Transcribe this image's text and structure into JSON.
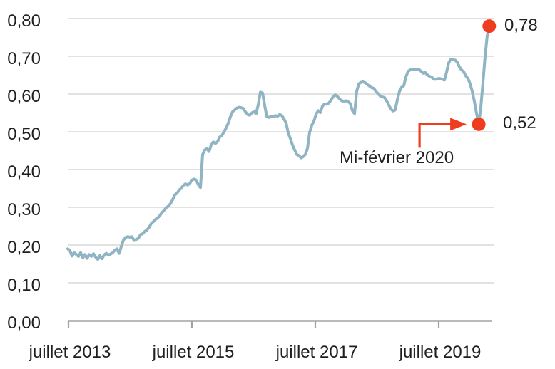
{
  "chart_data": {
    "type": "line",
    "title": "",
    "legend": "none",
    "grid": "horizontal-only",
    "x_axis": {
      "tick_labels": [
        "juillet 2013",
        "juillet 2015",
        "juillet 2017",
        "juillet 2019"
      ],
      "tick_positions_years": [
        0,
        2,
        4,
        6
      ],
      "start": "juillet 2013",
      "end_years_after_start": 6.83
    },
    "y_axis": {
      "tick_labels": [
        "0,00",
        "0,10",
        "0,20",
        "0,30",
        "0,40",
        "0,50",
        "0,60",
        "0,70",
        "0,80"
      ],
      "tick_values": [
        0,
        0.1,
        0.2,
        0.3,
        0.4,
        0.5,
        0.6,
        0.7,
        0.8
      ],
      "min": 0,
      "max": 0.8,
      "number_format": "french-comma"
    },
    "series": [
      {
        "name": "indicator",
        "color": "#8FB4C4",
        "x_step_years": 0.034682,
        "values": [
          0.19,
          0.185,
          0.171,
          0.18,
          0.175,
          0.17,
          0.18,
          0.166,
          0.175,
          0.165,
          0.175,
          0.17,
          0.177,
          0.168,
          0.162,
          0.172,
          0.164,
          0.174,
          0.178,
          0.174,
          0.176,
          0.18,
          0.186,
          0.19,
          0.178,
          0.196,
          0.213,
          0.22,
          0.222,
          0.221,
          0.222,
          0.212,
          0.215,
          0.218,
          0.228,
          0.23,
          0.236,
          0.24,
          0.247,
          0.257,
          0.262,
          0.268,
          0.272,
          0.278,
          0.286,
          0.292,
          0.299,
          0.303,
          0.31,
          0.32,
          0.333,
          0.337,
          0.345,
          0.351,
          0.358,
          0.362,
          0.359,
          0.363,
          0.372,
          0.375,
          0.372,
          0.36,
          0.352,
          0.44,
          0.452,
          0.455,
          0.448,
          0.465,
          0.473,
          0.469,
          0.474,
          0.486,
          0.49,
          0.5,
          0.51,
          0.523,
          0.54,
          0.553,
          0.558,
          0.563,
          0.565,
          0.564,
          0.562,
          0.553,
          0.546,
          0.544,
          0.55,
          0.553,
          0.548,
          0.572,
          0.605,
          0.603,
          0.57,
          0.54,
          0.538,
          0.54,
          0.54,
          0.543,
          0.541,
          0.546,
          0.543,
          0.534,
          0.524,
          0.497,
          0.482,
          0.465,
          0.452,
          0.44,
          0.437,
          0.431,
          0.434,
          0.44,
          0.456,
          0.498,
          0.517,
          0.528,
          0.546,
          0.556,
          0.551,
          0.568,
          0.574,
          0.573,
          0.576,
          0.584,
          0.593,
          0.598,
          0.594,
          0.587,
          0.582,
          0.581,
          0.582,
          0.58,
          0.575,
          0.556,
          0.548,
          0.607,
          0.627,
          0.631,
          0.632,
          0.63,
          0.625,
          0.621,
          0.617,
          0.615,
          0.607,
          0.601,
          0.595,
          0.592,
          0.591,
          0.582,
          0.571,
          0.56,
          0.555,
          0.558,
          0.585,
          0.607,
          0.618,
          0.622,
          0.645,
          0.66,
          0.664,
          0.666,
          0.665,
          0.664,
          0.665,
          0.661,
          0.655,
          0.657,
          0.651,
          0.647,
          0.645,
          0.639,
          0.639,
          0.641,
          0.641,
          0.639,
          0.637,
          0.658,
          0.683,
          0.692,
          0.691,
          0.69,
          0.684,
          0.672,
          0.664,
          0.659,
          0.648,
          0.641,
          0.627,
          0.607,
          0.58,
          0.549,
          0.52,
          0.565,
          0.63,
          0.7,
          0.755,
          0.78
        ]
      }
    ],
    "annotations": {
      "low_point": {
        "x_years": 6.66,
        "value": 0.52,
        "label": "0,52",
        "callout_text": "Mi-février 2020",
        "marker_color": "#F03C1E"
      },
      "end_point": {
        "x_years": 6.83,
        "value": 0.78,
        "label": "0,78",
        "marker_color": "#F03C1E"
      }
    },
    "colors": {
      "line": "#8FB4C4",
      "grid": "#D9D9D9",
      "axis": "#A3A3A3",
      "text": "#1F1F1F",
      "accent_red": "#F03C1E"
    }
  }
}
